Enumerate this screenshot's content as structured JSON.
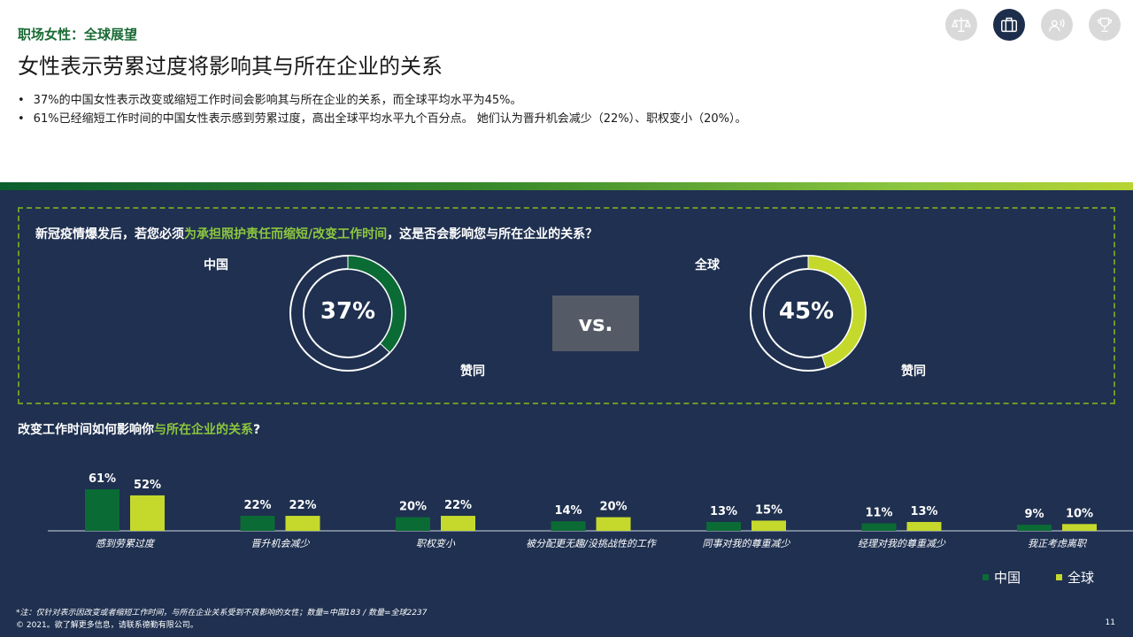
{
  "header": {
    "kicker": "职场女性：全球展望",
    "title": "女性表示劳累过度将影响其与所在企业的关系",
    "bullets": [
      "37%的中国女性表示改变或缩短工作时间会影响其与所在企业的关系，而全球平均水平为45%。",
      "61%已经缩短工作时间的中国女性表示感到劳累过度，高出全球平均水平九个百分点。 她们认为晋升机会减少（22%）、职权变小（20%）。"
    ]
  },
  "nav_icons": [
    "balance-scale-icon",
    "briefcase-icon",
    "people-talk-icon",
    "trophy-icon"
  ],
  "survey": {
    "question_pre": "新冠疫情爆发后，若您必须",
    "question_highlight": "为承担照护责任而缩短/改变工作时间",
    "question_post": "，这是否会影响您与所在企业的关系？",
    "china_label": "中国",
    "global_label": "全球",
    "china_value_text": "37%",
    "global_value_text": "45%",
    "agree_label": "赞同",
    "vs_label": "vs."
  },
  "q2": {
    "pre": "改变工作时间如何影响你",
    "highlight": "与所在企业的关系",
    "post": "?"
  },
  "legend": {
    "china": "中国",
    "global": "全球"
  },
  "colors": {
    "china": "#0b6b35",
    "global": "#c5d92d",
    "panel": "#1f3050",
    "highlight": "#8cc63f"
  },
  "chart_data": [
    {
      "type": "pie",
      "title": "中国",
      "values": [
        37,
        63
      ],
      "labels": [
        "赞同",
        ""
      ]
    },
    {
      "type": "pie",
      "title": "全球",
      "values": [
        45,
        55
      ],
      "labels": [
        "赞同",
        ""
      ]
    },
    {
      "type": "bar",
      "title": "改变工作时间如何影响你与所在企业的关系?",
      "categories": [
        "感到劳累过度",
        "晋升机会减少",
        "职权变小",
        "被分配更无趣/没挑战性的工作",
        "同事对我的尊重减少",
        "经理对我的尊重减少",
        "我正考虑离职"
      ],
      "series": [
        {
          "name": "中国",
          "values": [
            61,
            22,
            20,
            14,
            13,
            11,
            9
          ]
        },
        {
          "name": "全球",
          "values": [
            52,
            22,
            22,
            20,
            15,
            13,
            10
          ]
        }
      ],
      "ylim": [
        0,
        61
      ]
    }
  ],
  "footer": {
    "note": "*注：仅针对表示因改变或者缩短工作时间，与所在企业关系受到不良影响的女性；数量=中国183 / 数量=全球2237",
    "copyright": "© 2021。欲了解更多信息，请联系德勤有限公司。",
    "page": "11"
  }
}
